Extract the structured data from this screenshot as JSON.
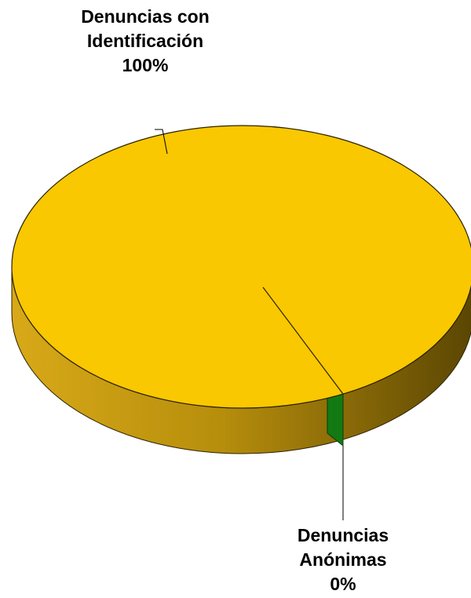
{
  "chart_data": {
    "type": "pie",
    "style": "3d",
    "slices": [
      {
        "name_lines": [
          "Denuncias con",
          "Identificación"
        ],
        "value": 100,
        "value_label": "100%",
        "color": "#F9C800"
      },
      {
        "name_lines": [
          "Denuncias",
          "Anónimas"
        ],
        "value": 0,
        "value_label": "0%",
        "color": "#137A13"
      }
    ],
    "legend": "none"
  }
}
